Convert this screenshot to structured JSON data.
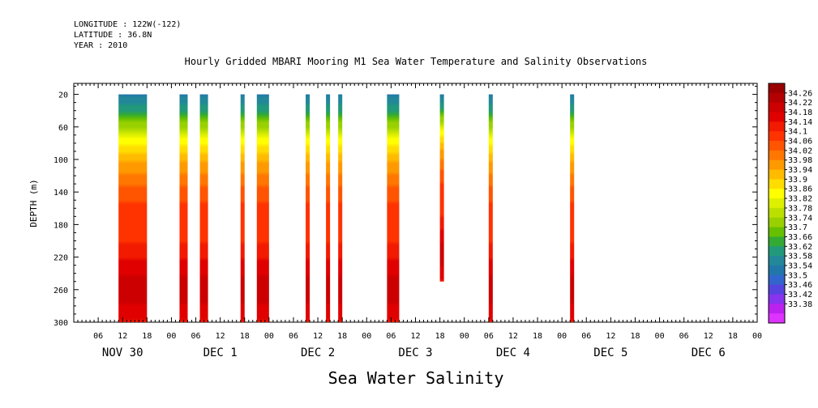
{
  "header": {
    "longitude": "LONGITUDE : 122W(-122)",
    "latitude": "LATITUDE : 36.8N",
    "year": "YEAR : 2010"
  },
  "chart_data": {
    "type": "heatmap",
    "title": "Hourly Gridded MBARI Mooring M1 Sea Water Temperature and Salinity Observations",
    "xlabel": "Sea Water Salinity",
    "ylabel": "DEPTH (m)",
    "y_range": [
      0,
      300
    ],
    "y_ticks": [
      20,
      60,
      100,
      140,
      180,
      220,
      260,
      300
    ],
    "y_inverted": true,
    "x_start": "2010-11-30 00:00",
    "x_end": "2010-12-07 00:00",
    "x_tick_hours": [
      "06",
      "12",
      "18",
      "00",
      "06",
      "12",
      "18",
      "00",
      "06",
      "12",
      "18",
      "00",
      "06",
      "12",
      "18",
      "00",
      "06",
      "12",
      "18",
      "00",
      "06",
      "12",
      "18",
      "00",
      "06",
      "12",
      "18",
      "00"
    ],
    "x_day_labels": [
      "NOV 30",
      "DEC 1",
      "DEC 2",
      "DEC 3",
      "DEC 4",
      "DEC 5",
      "DEC 6"
    ],
    "colorbar": {
      "levels": [
        "34.26",
        "34.22",
        "34.18",
        "34.14",
        "34.1",
        "34.06",
        "34.02",
        "33.98",
        "33.94",
        "33.9",
        "33.86",
        "33.82",
        "33.78",
        "33.74",
        "33.7",
        "33.66",
        "33.62",
        "33.58",
        "33.54",
        "33.5",
        "33.46",
        "33.42",
        "33.38"
      ],
      "colors": [
        "#990000",
        "#b30000",
        "#cc0000",
        "#e00000",
        "#f21a00",
        "#ff3300",
        "#ff5500",
        "#ff7700",
        "#ff9900",
        "#ffbb00",
        "#ffdd00",
        "#ffff00",
        "#ddf000",
        "#bbe000",
        "#99d000",
        "#66c000",
        "#33aa33",
        "#22997a",
        "#228899",
        "#2277aa",
        "#3366cc",
        "#5544dd",
        "#8833ee",
        "#bb22ee",
        "#dd33ff"
      ]
    },
    "columns": [
      {
        "t_start_h": 11,
        "t_end_h": 18,
        "depth_max": 300
      },
      {
        "t_start_h": 26,
        "t_end_h": 28,
        "depth_max": 300
      },
      {
        "t_start_h": 31,
        "t_end_h": 33,
        "depth_max": 300
      },
      {
        "t_start_h": 41,
        "t_end_h": 42,
        "depth_max": 300
      },
      {
        "t_start_h": 45,
        "t_end_h": 48,
        "depth_max": 300
      },
      {
        "t_start_h": 57,
        "t_end_h": 58,
        "depth_max": 300
      },
      {
        "t_start_h": 62,
        "t_end_h": 63,
        "depth_max": 300
      },
      {
        "t_start_h": 65,
        "t_end_h": 66,
        "depth_max": 300
      },
      {
        "t_start_h": 77,
        "t_end_h": 80,
        "depth_max": 300
      },
      {
        "t_start_h": 90,
        "t_end_h": 91,
        "depth_max": 250
      },
      {
        "t_start_h": 102,
        "t_end_h": 103,
        "depth_max": 300
      },
      {
        "t_start_h": 122,
        "t_end_h": 123,
        "depth_max": 300
      }
    ],
    "profile": {
      "depths": [
        20,
        40,
        60,
        80,
        100,
        120,
        140,
        160,
        180,
        200,
        220,
        240,
        260,
        280,
        300
      ],
      "salinity": [
        33.52,
        33.62,
        33.74,
        33.86,
        33.94,
        33.99,
        34.04,
        34.07,
        34.08,
        34.1,
        34.14,
        34.18,
        34.22,
        34.18,
        34.14
      ]
    }
  }
}
